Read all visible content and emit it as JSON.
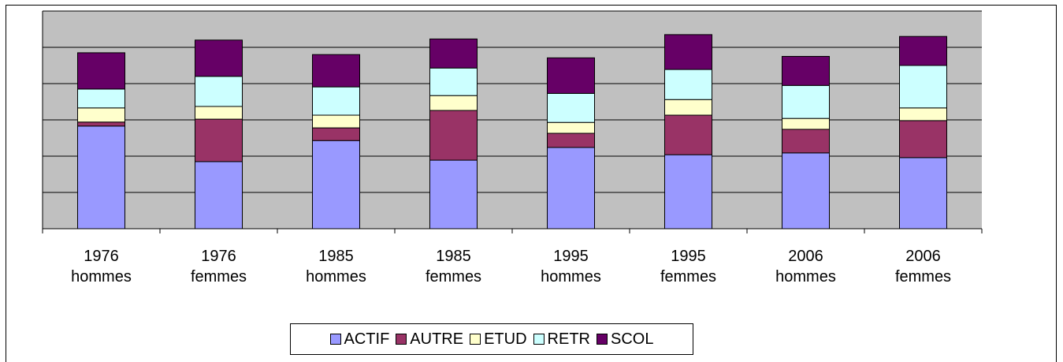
{
  "chart_data": {
    "type": "stacked_bar",
    "categories": [
      "1976 hommes",
      "1976 femmes",
      "1985 hommes",
      "1985 femmes",
      "1995 hommes",
      "1995 femmes",
      "2006 hommes",
      "2006 femmes"
    ],
    "series": [
      {
        "name": "ACTIF",
        "color": "#9999ff",
        "values": [
          2.83,
          1.85,
          2.43,
          1.89,
          2.24,
          2.04,
          2.09,
          1.96
        ]
      },
      {
        "name": "AUTRE",
        "color": "#993366",
        "values": [
          0.11,
          1.17,
          0.35,
          1.37,
          0.39,
          1.09,
          0.65,
          1.02
        ]
      },
      {
        "name": "ETUD",
        "color": "#ffffcc",
        "values": [
          0.39,
          0.35,
          0.35,
          0.41,
          0.3,
          0.43,
          0.3,
          0.35
        ]
      },
      {
        "name": "RETR",
        "color": "#ccffff",
        "values": [
          0.52,
          0.83,
          0.78,
          0.76,
          0.8,
          0.83,
          0.91,
          1.17
        ]
      },
      {
        "name": "SCOL",
        "color": "#660066",
        "values": [
          1.0,
          1.0,
          0.89,
          0.8,
          0.98,
          0.96,
          0.8,
          0.8
        ]
      }
    ],
    "ylim": [
      0,
      6
    ],
    "yticks": [
      0,
      1,
      2,
      3,
      4,
      5,
      6
    ],
    "grid": true,
    "legend": "bottom"
  }
}
